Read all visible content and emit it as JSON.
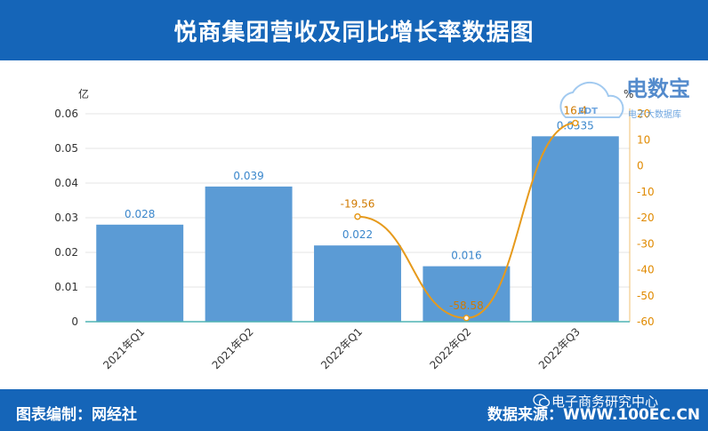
{
  "header": {
    "title": "悦商集团营收及同比增长率数据图"
  },
  "footer": {
    "left": "图表编制：网经社",
    "right": "数据来源：WWW.100EC.CN",
    "wechat": "电子商务研究中心"
  },
  "watermark": {
    "text": "电数宝",
    "sub": "电子大数据库",
    "logo": "EDT"
  },
  "colors": {
    "bar": "#5b9bd5",
    "line": "#e69a1c",
    "header": "#1565b8"
  },
  "chart_data": {
    "type": "bar",
    "categories": [
      "2021年Q1",
      "2021年Q2",
      "2022年Q1",
      "2022年Q2",
      "2022年Q3"
    ],
    "series": [
      {
        "type": "bar",
        "axis": "left",
        "values": [
          0.028,
          0.039,
          0.022,
          0.016,
          0.0535
        ]
      },
      {
        "type": "line",
        "axis": "right",
        "values": [
          null,
          null,
          -19.56,
          -58.58,
          16.4
        ],
        "labels": [
          "",
          "",
          "-19.56",
          "-58.58",
          "16.4"
        ]
      }
    ],
    "bar_labels": [
      "0.028",
      "0.039",
      "0.022",
      "0.016",
      "0.0535"
    ],
    "y_left": {
      "unit": "亿",
      "ylim": [
        0,
        0.06
      ],
      "ticks": [
        "0",
        "0.01",
        "0.02",
        "0.03",
        "0.04",
        "0.05",
        "0.06"
      ]
    },
    "y_right": {
      "unit": "%",
      "ylim": [
        -60,
        20
      ],
      "ticks": [
        "-60",
        "-50",
        "-40",
        "-30",
        "-20",
        "-10",
        "0",
        "10",
        "20"
      ]
    },
    "grid": true
  }
}
